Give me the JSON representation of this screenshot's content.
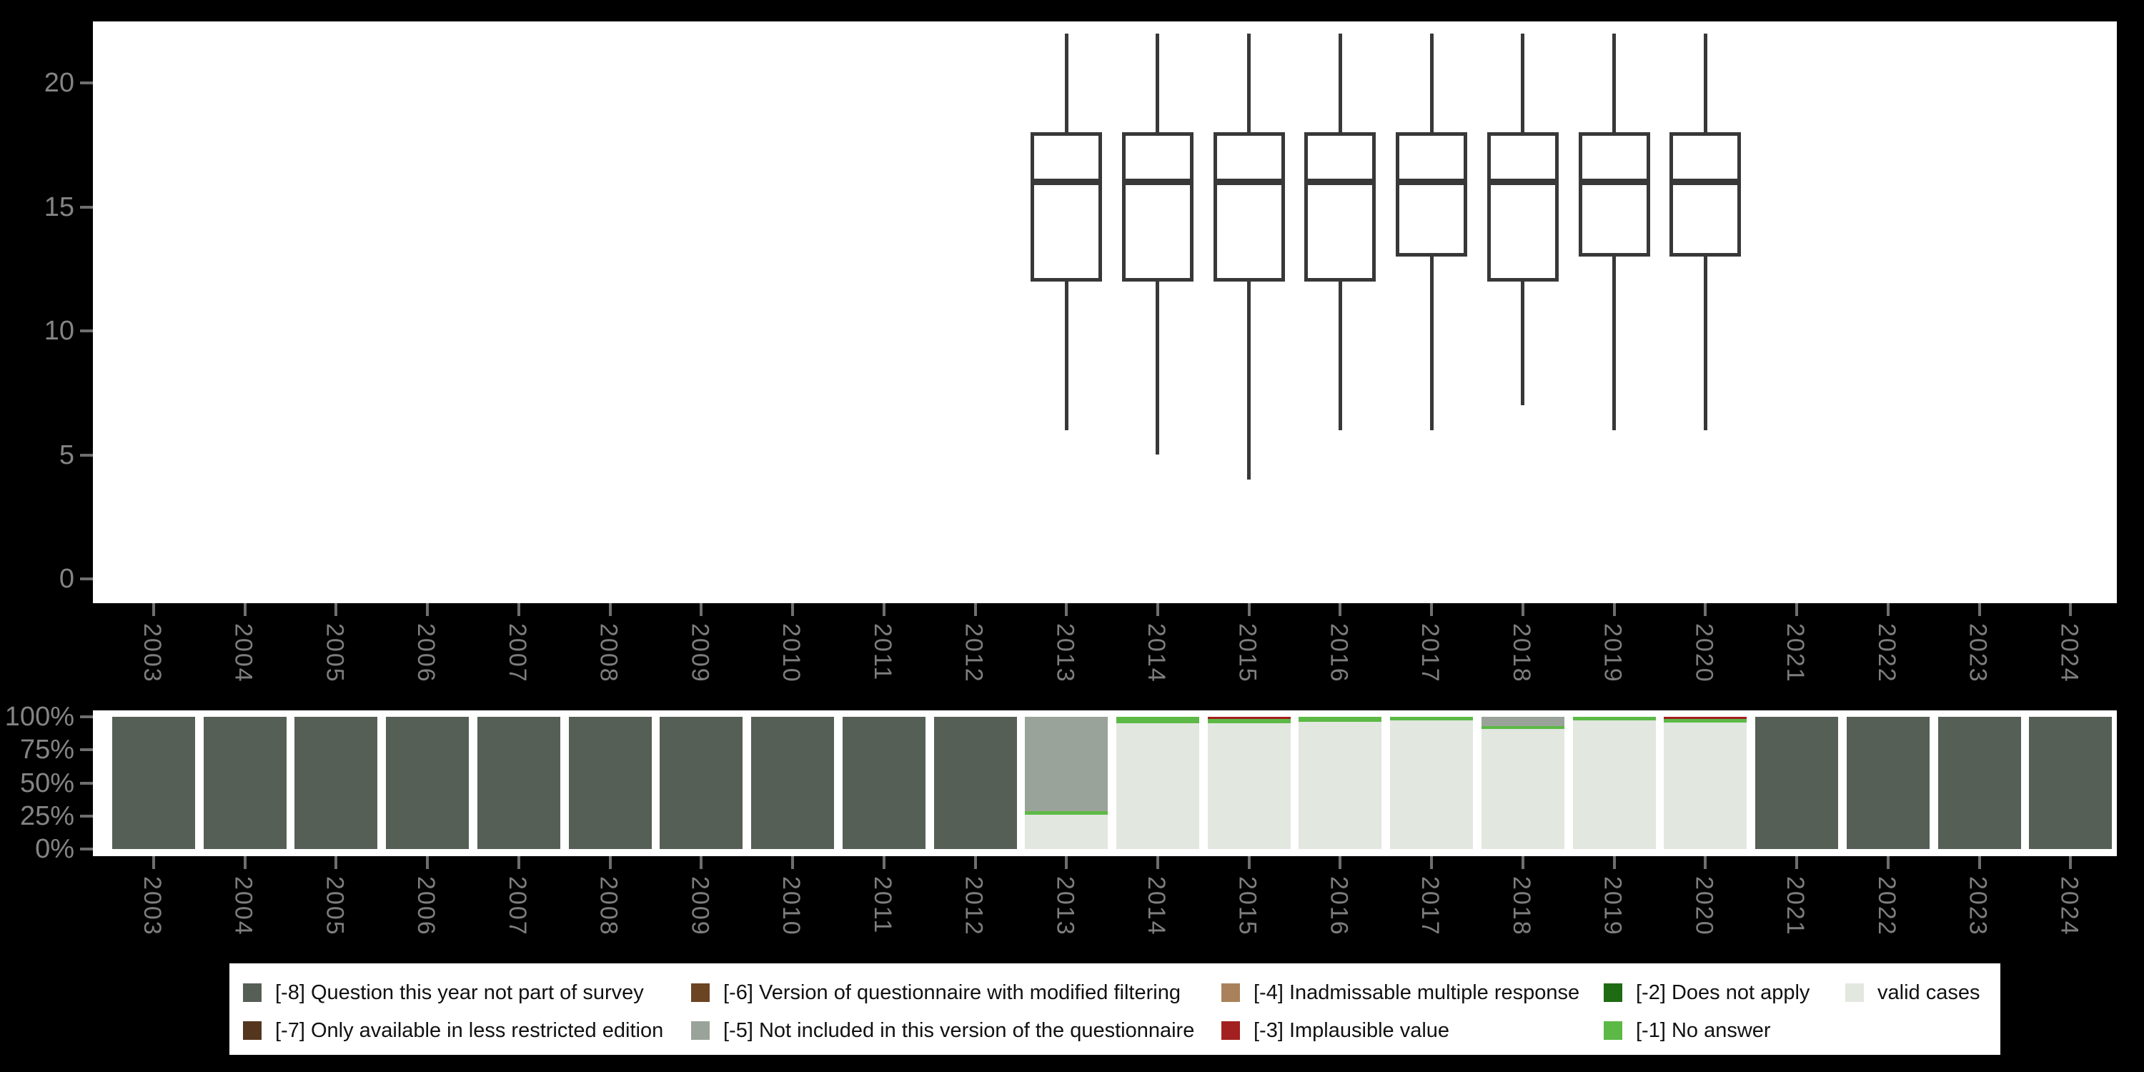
{
  "figure": {
    "background_color": "#000000",
    "panel_color": "#ffffff"
  },
  "colors": {
    "-8": "#565f56",
    "-7": "#54351e",
    "-6": "#6b4423",
    "-5": "#9aa39a",
    "-4": "#a9825b",
    "-3": "#a32020",
    "-2": "#1f6b13",
    "-1": "#5cb946",
    "valid": "#e2e7e0",
    "box_stroke": "#383838",
    "axis_tick": "#6f6f6f",
    "axis_label": "#848484"
  },
  "chart_data": [
    {
      "type": "boxplot",
      "title": "",
      "xlabel": "",
      "ylabel": "",
      "x_categories": [
        "2003",
        "2004",
        "2005",
        "2006",
        "2007",
        "2008",
        "2009",
        "2010",
        "2011",
        "2012",
        "2013",
        "2014",
        "2015",
        "2016",
        "2017",
        "2018",
        "2019",
        "2020",
        "2021",
        "2022",
        "2023",
        "2024"
      ],
      "yticks": [
        "0",
        "5",
        "10",
        "15",
        "20"
      ],
      "ytick_values": [
        0,
        5,
        10,
        15,
        20
      ],
      "ylim": [
        -1,
        22.5
      ],
      "grid": false,
      "boxes": [
        {
          "year": "2013",
          "low": 6,
          "q1": 12,
          "median": 16,
          "q3": 18,
          "high": 22
        },
        {
          "year": "2014",
          "low": 5,
          "q1": 12,
          "median": 16,
          "q3": 18,
          "high": 22
        },
        {
          "year": "2015",
          "low": 4,
          "q1": 12,
          "median": 16,
          "q3": 18,
          "high": 22
        },
        {
          "year": "2016",
          "low": 6,
          "q1": 12,
          "median": 16,
          "q3": 18,
          "high": 22
        },
        {
          "year": "2017",
          "low": 6,
          "q1": 13,
          "median": 16,
          "q3": 18,
          "high": 22
        },
        {
          "year": "2018",
          "low": 7,
          "q1": 12,
          "median": 16,
          "q3": 18,
          "high": 22
        },
        {
          "year": "2019",
          "low": 6,
          "q1": 13,
          "median": 16,
          "q3": 18,
          "high": 22
        },
        {
          "year": "2020",
          "low": 6,
          "q1": 13,
          "median": 16,
          "q3": 18,
          "high": 22
        }
      ]
    },
    {
      "type": "stacked_bar_percent",
      "title": "",
      "xlabel": "",
      "ylabel": "",
      "x_categories": [
        "2003",
        "2004",
        "2005",
        "2006",
        "2007",
        "2008",
        "2009",
        "2010",
        "2011",
        "2012",
        "2013",
        "2014",
        "2015",
        "2016",
        "2017",
        "2018",
        "2019",
        "2020",
        "2021",
        "2022",
        "2023",
        "2024"
      ],
      "yticks": [
        "0%",
        "25%",
        "50%",
        "75%",
        "100%"
      ],
      "ytick_values": [
        0,
        25,
        50,
        75,
        100
      ],
      "ylim": [
        0,
        100
      ],
      "grid": false,
      "bars": [
        {
          "year": "2003",
          "segments": [
            {
              "code": "-8",
              "pct": 100
            }
          ]
        },
        {
          "year": "2004",
          "segments": [
            {
              "code": "-8",
              "pct": 100
            }
          ]
        },
        {
          "year": "2005",
          "segments": [
            {
              "code": "-8",
              "pct": 100
            }
          ]
        },
        {
          "year": "2006",
          "segments": [
            {
              "code": "-8",
              "pct": 100
            }
          ]
        },
        {
          "year": "2007",
          "segments": [
            {
              "code": "-8",
              "pct": 100
            }
          ]
        },
        {
          "year": "2008",
          "segments": [
            {
              "code": "-8",
              "pct": 100
            }
          ]
        },
        {
          "year": "2009",
          "segments": [
            {
              "code": "-8",
              "pct": 100
            }
          ]
        },
        {
          "year": "2010",
          "segments": [
            {
              "code": "-8",
              "pct": 100
            }
          ]
        },
        {
          "year": "2011",
          "segments": [
            {
              "code": "-8",
              "pct": 100
            }
          ]
        },
        {
          "year": "2012",
          "segments": [
            {
              "code": "-8",
              "pct": 100
            }
          ]
        },
        {
          "year": "2013",
          "segments": [
            {
              "code": "-5",
              "pct": 71.5
            },
            {
              "code": "-1",
              "pct": 2.5
            },
            {
              "code": "valid",
              "pct": 26
            }
          ]
        },
        {
          "year": "2014",
          "segments": [
            {
              "code": "-1",
              "pct": 5
            },
            {
              "code": "valid",
              "pct": 95
            }
          ]
        },
        {
          "year": "2015",
          "segments": [
            {
              "code": "-3",
              "pct": 1.5
            },
            {
              "code": "-1",
              "pct": 3.5
            },
            {
              "code": "valid",
              "pct": 95
            }
          ]
        },
        {
          "year": "2016",
          "segments": [
            {
              "code": "-1",
              "pct": 4
            },
            {
              "code": "valid",
              "pct": 96
            }
          ]
        },
        {
          "year": "2017",
          "segments": [
            {
              "code": "-1",
              "pct": 2.5
            },
            {
              "code": "valid",
              "pct": 97.5
            }
          ]
        },
        {
          "year": "2018",
          "segments": [
            {
              "code": "-5",
              "pct": 7
            },
            {
              "code": "-1",
              "pct": 2
            },
            {
              "code": "valid",
              "pct": 91
            }
          ]
        },
        {
          "year": "2019",
          "segments": [
            {
              "code": "-1",
              "pct": 2.5
            },
            {
              "code": "valid",
              "pct": 97.5
            }
          ]
        },
        {
          "year": "2020",
          "segments": [
            {
              "code": "-3",
              "pct": 1.5
            },
            {
              "code": "-1",
              "pct": 3
            },
            {
              "code": "valid",
              "pct": 95.5
            }
          ]
        },
        {
          "year": "2021",
          "segments": [
            {
              "code": "-8",
              "pct": 100
            }
          ]
        },
        {
          "year": "2022",
          "segments": [
            {
              "code": "-8",
              "pct": 100
            }
          ]
        },
        {
          "year": "2023",
          "segments": [
            {
              "code": "-8",
              "pct": 100
            }
          ]
        },
        {
          "year": "2024",
          "segments": [
            {
              "code": "-8",
              "pct": 100
            }
          ]
        }
      ]
    }
  ],
  "legend": {
    "position": "bottom",
    "columns": [
      {
        "rows": [
          {
            "code": "-8",
            "label": "[-8] Question this year not part of survey",
            "color": "#565f56"
          },
          {
            "code": "-7",
            "label": "[-7] Only available in less restricted edition",
            "color": "#54351e"
          }
        ]
      },
      {
        "rows": [
          {
            "code": "-6",
            "label": "[-6] Version of questionnaire with modified filtering",
            "color": "#6b4423"
          },
          {
            "code": "-5",
            "label": "[-5] Not included in this version of the questionnaire",
            "color": "#9aa39a"
          }
        ]
      },
      {
        "rows": [
          {
            "code": "-4",
            "label": "[-4] Inadmissable multiple response",
            "color": "#a9825b"
          },
          {
            "code": "-3",
            "label": "[-3] Implausible value",
            "color": "#a32020"
          }
        ]
      },
      {
        "rows": [
          {
            "code": "-2",
            "label": "[-2] Does not apply",
            "color": "#1f6b13"
          },
          {
            "code": "-1",
            "label": "[-1] No answer",
            "color": "#5cb946"
          }
        ]
      },
      {
        "rows": [
          {
            "code": "valid",
            "label": "valid cases",
            "color": "#e2e7e0"
          }
        ]
      }
    ]
  }
}
